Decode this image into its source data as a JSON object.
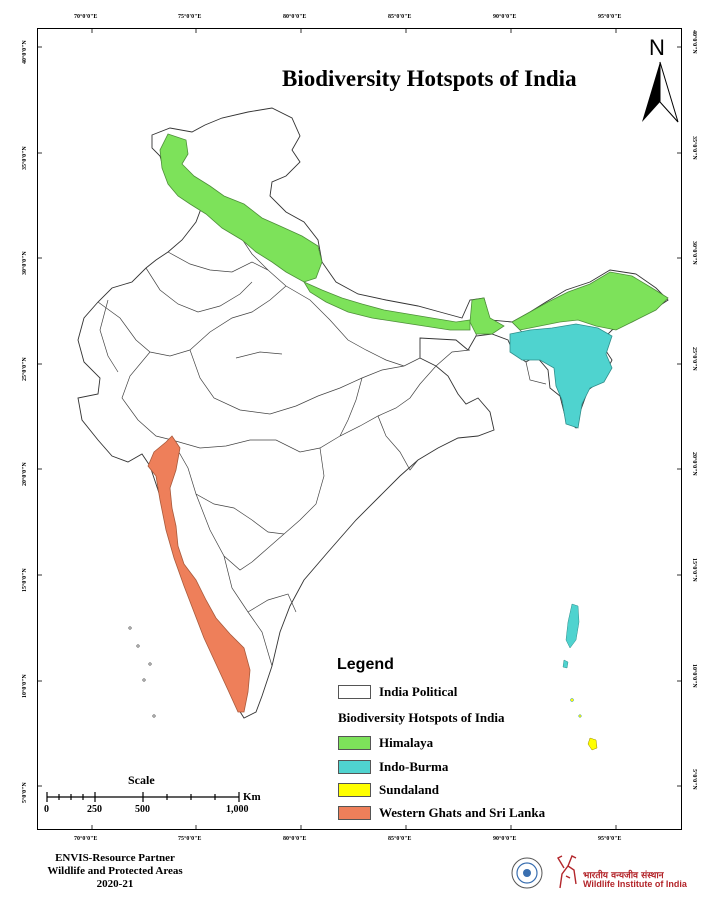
{
  "title": "Biodiversity Hotspots of India",
  "north_label": "N",
  "graticule": {
    "longitude_labels": [
      "70°0'0\"E",
      "75°0'0\"E",
      "80°0'0\"E",
      "85°0'0\"E",
      "90°0'0\"E",
      "95°0'0\"E"
    ],
    "latitude_labels": [
      "40°0'0\"N",
      "35°0'0\"N",
      "30°0'0\"N",
      "25°0'0\"N",
      "20°0'0\"N",
      "15°0'0\"N",
      "10°0'0\"N",
      "5°0'0\"N"
    ]
  },
  "legend": {
    "title": "Legend",
    "base_layer": {
      "label": "India Political",
      "color": "#ffffff"
    },
    "subtitle": "Biodiversity Hotspots of India",
    "items": [
      {
        "label": "Himalaya",
        "color": "#7de25a"
      },
      {
        "label": "Indo-Burma",
        "color": "#4fd3cf"
      },
      {
        "label": "Sundaland",
        "color": "#ffff00"
      },
      {
        "label": "Western Ghats and Sri Lanka",
        "color": "#ee7f5a"
      }
    ]
  },
  "scale": {
    "title": "Scale",
    "unit": "Km",
    "ticks": [
      "0",
      "250",
      "500",
      "1,000"
    ]
  },
  "credits": {
    "line1": "ENVIS-Resource Partner",
    "line2": "Wildlife and Protected Areas",
    "line3": "2020-21"
  },
  "institute": {
    "name_hindi": "भारतीय वन्यजीव संस्थान",
    "name_english": "Wildlife Institute of India"
  }
}
